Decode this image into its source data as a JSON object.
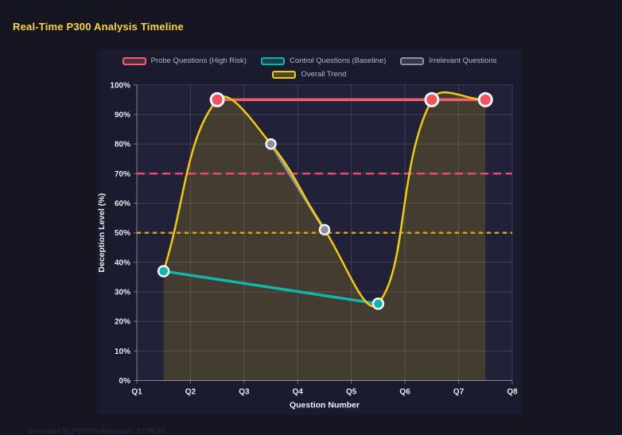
{
  "page": {
    "title": "Real-Time P300 Analysis Timeline",
    "footer": "Generated by P300 Professional - 19:05:43",
    "background": "#151622",
    "accent": "#ffd43b"
  },
  "legend": {
    "rows": [
      [
        0,
        1,
        2
      ],
      [
        3
      ]
    ]
  },
  "chart_data": {
    "type": "line",
    "title": "Real-Time P300 Analysis Timeline",
    "xlabel": "Question Number",
    "ylabel": "Deception Level (%)",
    "x_ticks": [
      "Q1",
      "Q2",
      "Q3",
      "Q4",
      "Q5",
      "Q6",
      "Q7",
      "Q8"
    ],
    "y_ticks": [
      "0%",
      "10%",
      "20%",
      "30%",
      "40%",
      "50%",
      "60%",
      "70%",
      "80%",
      "90%",
      "100%"
    ],
    "xlim": [
      1,
      8
    ],
    "ylim": [
      0,
      100
    ],
    "grid": true,
    "legend_position": "top",
    "series": [
      {
        "name": "Probe Questions (High Risk)",
        "color": "#f4606b",
        "point_color": "#f4525e",
        "x": [
          2.5,
          6.5,
          7.5
        ],
        "y": [
          95,
          95,
          95
        ],
        "point_radius": 8,
        "smooth": false,
        "fill": false
      },
      {
        "name": "Control Questions (Baseline)",
        "color": "#10b6ac",
        "point_color": "#10b6ac",
        "x": [
          1.5,
          5.5
        ],
        "y": [
          37,
          26
        ],
        "point_radius": 6.5,
        "smooth": false,
        "fill": false
      },
      {
        "name": "Irrelevant Questions",
        "color": "#91919c",
        "point_color": "#8d8d98",
        "x": [
          3.5,
          4.5
        ],
        "y": [
          80,
          51
        ],
        "point_radius": 6,
        "smooth": false,
        "fill": false
      },
      {
        "name": "Overall Trend",
        "color": "#f1ca0c",
        "point_color": "#f1ca0c",
        "x": [
          1.5,
          2.5,
          3.5,
          4.5,
          5.5,
          6.5,
          7.5
        ],
        "y": [
          37,
          95,
          80,
          51,
          26,
          95,
          95
        ],
        "point_radius": 0,
        "smooth": true,
        "fill": true,
        "fill_color": "rgba(241,202,12,0.16)"
      }
    ],
    "thresholds": [
      {
        "value": 70,
        "color": "#ea4a6d",
        "dash": "10 6"
      },
      {
        "value": 50,
        "color": "#d9a404",
        "dash": "5 5"
      }
    ],
    "colors": {
      "plot_background": "#212239",
      "grid": "rgba(255,255,255,0.13)",
      "axis": "rgba(255,255,255,0.38)",
      "tick_label": "#e8e9f0",
      "axis_title": "#eef0f6",
      "point_border": "#f3f4f7"
    }
  }
}
